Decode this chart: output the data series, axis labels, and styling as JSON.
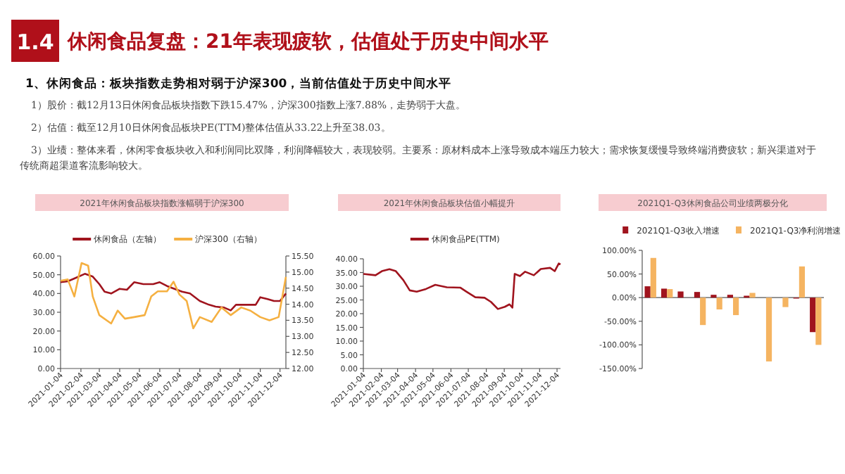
{
  "chart_data": [
    {
      "type": "line",
      "title": "2021年休闲食品板块指数涨幅弱于沪深300",
      "annotations": [
        "1.4",
        "休闲食品复盘：21年表现疲软，估值处于历史中间水平",
        "1、休闲食品：板块指数走势相对弱于沪深300，当前估值处于历史中间水平",
        "1）股价：截12月13日休闲食品板块指数下跌15.47%，沪深300指数上涨7.88%，走势弱于大盘。",
        "2）估值：截至12月10日休闲食品板块PE(TTM)整体估值从33.22上升至38.03。",
        "3）业绩：整体来看，休闲零食板块收入和利润同比双降，利润降幅较大，表现较弱。主要系：原材料成本上涨导致成本端压力较大；需求恢复缓慢导致终端消费疲软；新兴渠道对于传统商超渠道客流影响较大。"
      ],
      "legend": "top",
      "grid": false,
      "xlim": [
        "2021-01-04",
        "2021-12-13"
      ],
      "xticks": [
        "2021-01-04",
        "2021-02-04",
        "2021-03-04",
        "2021-04-04",
        "2021-05-04",
        "2021-06-04",
        "2021-07-04",
        "2021-08-04",
        "2021-09-04",
        "2021-10-04",
        "2021-11-04",
        "2021-12-04"
      ],
      "ylim": [
        0,
        60
      ],
      "yticks": [
        {
          "value": 0,
          "label": "0.00"
        },
        {
          "value": 10,
          "label": "10.00"
        },
        {
          "value": 20,
          "label": "20.00"
        },
        {
          "value": 30,
          "label": "30.00"
        },
        {
          "value": 40,
          "label": "40.00"
        },
        {
          "value": 50,
          "label": "50.00"
        },
        {
          "value": 60,
          "label": "60.00"
        }
      ],
      "y2lim": [
        12,
        15.5
      ],
      "y2ticks": [
        {
          "value": 12,
          "label": "12.00"
        },
        {
          "value": 12.5,
          "label": "12.50"
        },
        {
          "value": 13,
          "label": "13.00"
        },
        {
          "value": 13.5,
          "label": "13.50"
        },
        {
          "value": 14,
          "label": "14.00"
        },
        {
          "value": 14.5,
          "label": "14.50"
        },
        {
          "value": 15,
          "label": "15.00"
        },
        {
          "value": 15.5,
          "label": "15.50"
        }
      ],
      "series": [
        {
          "name": "休闲食品（左轴）",
          "color": "#a0141e",
          "x": [
            "2021-01-04",
            "2021-01-15",
            "2021-01-25",
            "2021-02-10",
            "2021-02-22",
            "2021-03-04",
            "2021-03-12",
            "2021-03-22",
            "2021-04-04",
            "2021-04-15",
            "2021-04-26",
            "2021-05-10",
            "2021-05-25",
            "2021-06-04",
            "2021-06-15",
            "2021-06-30",
            "2021-07-08",
            "2021-07-20",
            "2021-08-04",
            "2021-08-18",
            "2021-08-28",
            "2021-09-10",
            "2021-09-20",
            "2021-09-28",
            "2021-10-15",
            "2021-10-28",
            "2021-11-04",
            "2021-11-15",
            "2021-11-25",
            "2021-12-04",
            "2021-12-13"
          ],
          "values": [
            46,
            46.5,
            48,
            50.5,
            49,
            45,
            41,
            40,
            42.5,
            42,
            46,
            45,
            45,
            46,
            44,
            42,
            41,
            40,
            36,
            34,
            33,
            32.5,
            31,
            34,
            34,
            34,
            38,
            37,
            36,
            36,
            40
          ]
        },
        {
          "name": "沪深300（右轴）",
          "color": "#f5b041",
          "axis": "y2",
          "x": [
            "2021-01-04",
            "2021-01-15",
            "2021-01-25",
            "2021-02-05",
            "2021-02-15",
            "2021-02-22",
            "2021-03-04",
            "2021-03-22",
            "2021-04-01",
            "2021-04-12",
            "2021-04-26",
            "2021-05-12",
            "2021-05-22",
            "2021-06-01",
            "2021-06-15",
            "2021-06-25",
            "2021-07-04",
            "2021-07-15",
            "2021-07-25",
            "2021-08-04",
            "2021-08-22",
            "2021-09-06",
            "2021-09-20",
            "2021-10-06",
            "2021-10-20",
            "2021-11-04",
            "2021-11-18",
            "2021-12-02",
            "2021-12-13"
          ],
          "values": [
            14.73,
            14.77,
            14.24,
            15.28,
            15.2,
            14.24,
            13.66,
            13.4,
            13.8,
            13.55,
            13.6,
            13.66,
            14.24,
            14.4,
            14.4,
            14.7,
            14.3,
            14.1,
            13.25,
            13.6,
            13.45,
            13.9,
            13.66,
            13.9,
            13.8,
            13.6,
            13.5,
            13.6,
            14.85
          ]
        }
      ]
    },
    {
      "type": "line",
      "title": "2021年休闲食品板块估值小幅提升",
      "legend": "top",
      "grid": false,
      "xlim": [
        "2021-01-04",
        "2021-12-10"
      ],
      "xticks": [
        "2021-01-04",
        "2021-02-04",
        "2021-03-04",
        "2021-04-04",
        "2021-05-04",
        "2021-06-04",
        "2021-07-04",
        "2021-08-04",
        "2021-09-04",
        "2021-10-04",
        "2021-11-04",
        "2021-12-04"
      ],
      "ylim": [
        0,
        40
      ],
      "yticks": [
        {
          "value": 0,
          "label": "0.00"
        },
        {
          "value": 5,
          "label": "5.00"
        },
        {
          "value": 10,
          "label": "10.00"
        },
        {
          "value": 15,
          "label": "15.00"
        },
        {
          "value": 20,
          "label": "20.00"
        },
        {
          "value": 25,
          "label": "25.00"
        },
        {
          "value": 30,
          "label": "30.00"
        },
        {
          "value": 35,
          "label": "35.00"
        },
        {
          "value": 40,
          "label": "40.00"
        }
      ],
      "series": [
        {
          "name": "休闲食品PE(TTM)",
          "color": "#a0141e",
          "x": [
            "2021-01-04",
            "2021-01-25",
            "2021-02-05",
            "2021-02-18",
            "2021-03-01",
            "2021-03-14",
            "2021-03-25",
            "2021-04-06",
            "2021-04-22",
            "2021-05-08",
            "2021-05-28",
            "2021-06-20",
            "2021-07-01",
            "2021-07-16",
            "2021-08-01",
            "2021-08-12",
            "2021-08-24",
            "2021-09-05",
            "2021-09-13",
            "2021-09-18",
            "2021-09-22",
            "2021-10-01",
            "2021-10-10",
            "2021-10-25",
            "2021-11-06",
            "2021-11-22",
            "2021-11-30",
            "2021-12-07",
            "2021-12-10"
          ],
          "values": [
            34.5,
            34,
            35.5,
            36.2,
            35.5,
            32.2,
            28.5,
            28,
            29,
            30.5,
            29.6,
            29.5,
            28,
            26,
            25.8,
            24.3,
            21.7,
            22.5,
            23.4,
            22.2,
            34.5,
            33.7,
            35.3,
            34,
            36.3,
            36.7,
            35.5,
            38.3,
            38
          ]
        }
      ]
    },
    {
      "type": "bar",
      "title": "2021Q1-Q3休闲食品公司业绩两极分化",
      "legend": "top",
      "categories": [
        null,
        null,
        null,
        null,
        null,
        null,
        null,
        null,
        null,
        null,
        null
      ],
      "ylim": [
        -150,
        100
      ],
      "yticks": [
        {
          "value": -150,
          "label": "-150.00%"
        },
        {
          "value": -100,
          "label": "-100.00%"
        },
        {
          "value": -50,
          "label": "-50.00%"
        },
        {
          "value": 0,
          "label": "0.00%"
        },
        {
          "value": 50,
          "label": "50.00%"
        },
        {
          "value": 100,
          "label": "100.00%"
        }
      ],
      "series": [
        {
          "name": "2021Q1-Q3收入增速",
          "color": "#a0141e",
          "values": [
            24,
            19,
            13,
            12,
            6,
            6,
            4,
            null,
            null,
            -2,
            -73
          ]
        },
        {
          "name": "2021Q1-Q3净利润增速",
          "color": "#f5b461",
          "values": [
            84,
            18,
            null,
            -58,
            -25,
            -37,
            10,
            -135,
            -20,
            66,
            -100
          ]
        }
      ]
    }
  ]
}
